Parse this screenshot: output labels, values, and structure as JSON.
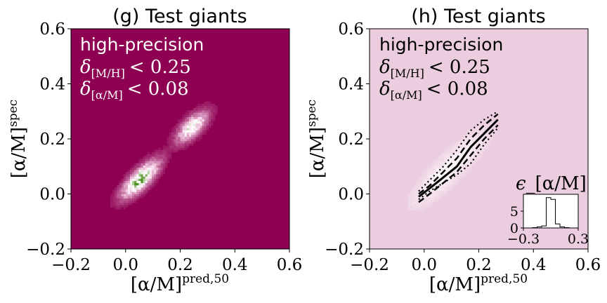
{
  "chart_data": [
    {
      "panel": "g",
      "title": "(g) Test giants",
      "type": "heatmap",
      "xlabel": "[α/M]",
      "xlabel_sup": "pred,50",
      "ylabel": "[α/M]",
      "ylabel_sup": "spec",
      "xlim": [
        -0.2,
        0.6
      ],
      "ylim": [
        -0.2,
        0.6
      ],
      "xticks": [
        "−0.2",
        "0.0",
        "0.2",
        "0.4",
        "0.6"
      ],
      "yticks": [
        "−0.2",
        "0.0",
        "0.2",
        "0.4",
        "0.6"
      ],
      "annotation": {
        "line1": "high-precision",
        "line2_sym": "δ",
        "line2_sub": "[M/H]",
        "line2_rel": "< 0.25",
        "line3_sym": "δ",
        "line3_sub": "[α/M]",
        "line3_rel": "< 0.08"
      },
      "colors": {
        "background": "#8e0152",
        "mid": "#f7d7ea",
        "peak": "#4d9221"
      },
      "density_clusters": [
        {
          "x": 0.05,
          "y": 0.05,
          "spread": 0.06,
          "weight": 1.0
        },
        {
          "x": 0.24,
          "y": 0.24,
          "spread": 0.05,
          "weight": 0.75
        }
      ]
    },
    {
      "panel": "h",
      "title": "(h) Test giants",
      "type": "line",
      "xlabel": "[α/M]",
      "xlabel_sup": "pred,50",
      "ylabel": "[α/M]",
      "ylabel_sup": "spec",
      "xlim": [
        -0.2,
        0.6
      ],
      "ylim": [
        -0.2,
        0.6
      ],
      "xticks": [
        "−0.2",
        "0.0",
        "0.2",
        "0.4",
        "0.6"
      ],
      "yticks": [
        "−0.2",
        "0.0",
        "0.2",
        "0.4",
        "0.6"
      ],
      "annotation": {
        "line1": "high-precision",
        "line2_sym": "δ",
        "line2_sub": "[M/H]",
        "line2_rel": "< 0.25",
        "line3_sym": "δ",
        "line3_sub": "[α/M]",
        "line3_rel": "< 0.08"
      },
      "colors": {
        "background": "#eccde0",
        "line": "#000000"
      },
      "series": [
        {
          "style": "solid",
          "x": [
            -0.02,
            0.02,
            0.07,
            0.12,
            0.17,
            0.22,
            0.27
          ],
          "y": [
            -0.01,
            0.02,
            0.06,
            0.1,
            0.17,
            0.22,
            0.27
          ]
        },
        {
          "style": "dashed",
          "x": [
            -0.02,
            0.02,
            0.07,
            0.12,
            0.17,
            0.22,
            0.27
          ],
          "y": [
            -0.03,
            0.0,
            0.04,
            0.08,
            0.14,
            0.2,
            0.25
          ]
        },
        {
          "style": "dashed",
          "x": [
            -0.02,
            0.02,
            0.07,
            0.12,
            0.17,
            0.22,
            0.27
          ],
          "y": [
            0.0,
            0.03,
            0.08,
            0.13,
            0.2,
            0.25,
            0.29
          ]
        },
        {
          "style": "dotted",
          "x": [
            -0.02,
            0.02,
            0.07,
            0.12,
            0.17,
            0.22,
            0.27
          ],
          "y": [
            -0.02,
            0.01,
            0.04,
            0.07,
            0.11,
            0.18,
            0.24
          ]
        },
        {
          "style": "dotted",
          "x": [
            -0.02,
            0.02,
            0.07,
            0.12,
            0.17,
            0.22,
            0.27
          ],
          "y": [
            0.01,
            0.05,
            0.1,
            0.16,
            0.23,
            0.27,
            0.3
          ]
        }
      ],
      "inset": {
        "type": "histogram",
        "title_sym": "ϵ",
        "title_rest": "_[α/M]",
        "xlim": [
          -0.3,
          0.3
        ],
        "ylim": [
          0,
          10
        ],
        "xticks": [
          "−0.3",
          "0.3"
        ],
        "yticks": [
          "0",
          "5"
        ],
        "bins": [
          -0.3,
          -0.25,
          -0.2,
          -0.15,
          -0.1,
          -0.05,
          0.0,
          0.05,
          0.1,
          0.15,
          0.2,
          0.25,
          0.3
        ],
        "counts": [
          0,
          0,
          0.1,
          0.3,
          0.6,
          9.0,
          8.5,
          1.2,
          0.3,
          0.1,
          0,
          0
        ]
      }
    }
  ]
}
